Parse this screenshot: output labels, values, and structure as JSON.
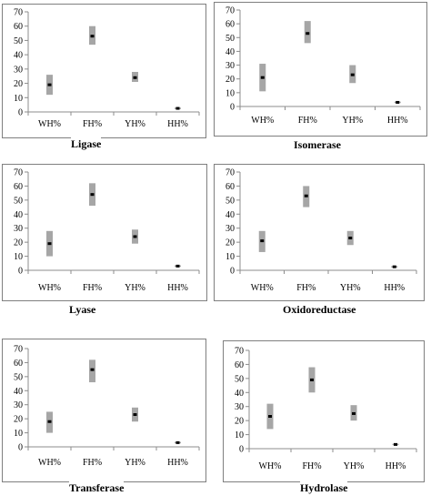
{
  "chart_data": [
    {
      "type": "range",
      "title": "Ligase",
      "categories": [
        "WH%",
        "FH%",
        "YH%",
        "HH%"
      ],
      "yticks": [
        0,
        10,
        20,
        30,
        40,
        50,
        60,
        70
      ],
      "ylim": [
        0,
        70
      ],
      "grid": false,
      "low": [
        12,
        47,
        21,
        2
      ],
      "high": [
        26,
        60,
        28,
        3
      ],
      "mean": [
        19,
        53,
        24,
        2.5
      ]
    },
    {
      "type": "range",
      "title": "Isomerase",
      "categories": [
        "WH%",
        "FH%",
        "YH%",
        "HH%"
      ],
      "yticks": [
        0,
        10,
        20,
        30,
        40,
        50,
        60,
        70
      ],
      "ylim": [
        0,
        70
      ],
      "grid": false,
      "low": [
        11,
        46,
        17,
        2.5
      ],
      "high": [
        31,
        62,
        30,
        3.5
      ],
      "mean": [
        21,
        53,
        23,
        3
      ]
    },
    {
      "type": "range",
      "title": "Lyase",
      "categories": [
        "WH%",
        "FH%",
        "YH%",
        "HH%"
      ],
      "yticks": [
        0,
        10,
        20,
        30,
        40,
        50,
        60,
        70
      ],
      "ylim": [
        0,
        70
      ],
      "grid": false,
      "low": [
        10,
        46,
        19,
        2.5
      ],
      "high": [
        28,
        62,
        29,
        3.5
      ],
      "mean": [
        19,
        54,
        24,
        3
      ]
    },
    {
      "type": "range",
      "title": "Oxidoreductase",
      "categories": [
        "WH%",
        "FH%",
        "YH%",
        "HH%"
      ],
      "yticks": [
        0,
        10,
        20,
        30,
        40,
        50,
        60,
        70
      ],
      "ylim": [
        0,
        70
      ],
      "grid": false,
      "low": [
        13,
        45,
        18,
        2
      ],
      "high": [
        28,
        60,
        28,
        3
      ],
      "mean": [
        21,
        53,
        23,
        2.5
      ]
    },
    {
      "type": "range",
      "title": "Transferase",
      "categories": [
        "WH%",
        "FH%",
        "YH%",
        "HH%"
      ],
      "yticks": [
        0,
        10,
        20,
        30,
        40,
        50,
        60,
        70
      ],
      "ylim": [
        0,
        70
      ],
      "grid": false,
      "low": [
        10,
        46,
        18,
        2.5
      ],
      "high": [
        25,
        62,
        28,
        3.5
      ],
      "mean": [
        18,
        55,
        23,
        3
      ]
    },
    {
      "type": "range",
      "title": "Hydrolase",
      "categories": [
        "WH%",
        "FH%",
        "YH%",
        "HH%"
      ],
      "yticks": [
        0,
        10,
        20,
        30,
        40,
        50,
        60,
        70
      ],
      "ylim": [
        0,
        70
      ],
      "grid": false,
      "low": [
        14,
        40,
        20,
        2.5
      ],
      "high": [
        32,
        58,
        31,
        3.5
      ],
      "mean": [
        23,
        49,
        25,
        3
      ]
    }
  ],
  "colors": {
    "range": "#a6a6a6",
    "mean": "#000000",
    "axis": "#8c8c8c",
    "border": "#7f7f7f"
  }
}
